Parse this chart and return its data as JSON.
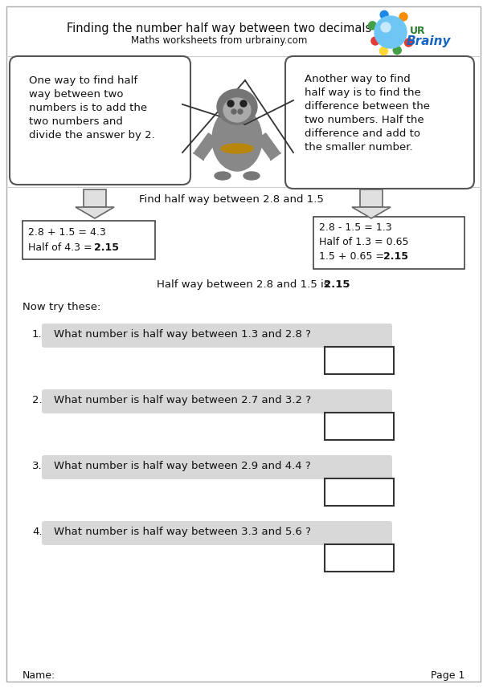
{
  "title": "Finding the number half way between two decimals",
  "subtitle": "Maths worksheets from urbrainy.com",
  "bubble_left": "One way to find half\nway between two\nnumbers is to add the\ntwo numbers and\ndivide the answer by 2.",
  "bubble_right": "Another way to find\nhalf way is to find the\ndifference between the\ntwo numbers. Half the\ndifference and add to\nthe smaller number.",
  "find_text": "Find half way between 2.8 and 1.5",
  "box_left_line1": "2.8 + 1.5 = 4.3",
  "box_left_line2a": "Half of 4.3 = ",
  "box_left_line2b": "2.15",
  "box_right_line1": "2.8 - 1.5 = 1.3",
  "box_right_line2": "Half of 1.3 = 0.65",
  "box_right_line3a": "1.5 + 0.65 = ",
  "box_right_line3b": "2.15",
  "halfway_plain": "Half way between 2.8 and 1.5 is ",
  "halfway_bold": "2.15",
  "now_try": "Now try these:",
  "questions": [
    "What number is half way between 1.3 and 2.8 ?",
    "What number is half way between 2.7 and 3.2 ?",
    "What number is half way between 2.9 and 4.4 ?",
    "What number is half way between 3.3 and 5.6 ?"
  ],
  "name_label": "Name:",
  "page_label": "Page 1",
  "bg": "#ffffff",
  "border": "#aaaaaa",
  "text": "#111111",
  "bubble_fill": "#ffffff",
  "bubble_edge": "#555555",
  "q_fill": "#d8d8d8",
  "ans_edge": "#333333",
  "arrow_fill": "#e0e0e0",
  "arrow_edge": "#666666"
}
